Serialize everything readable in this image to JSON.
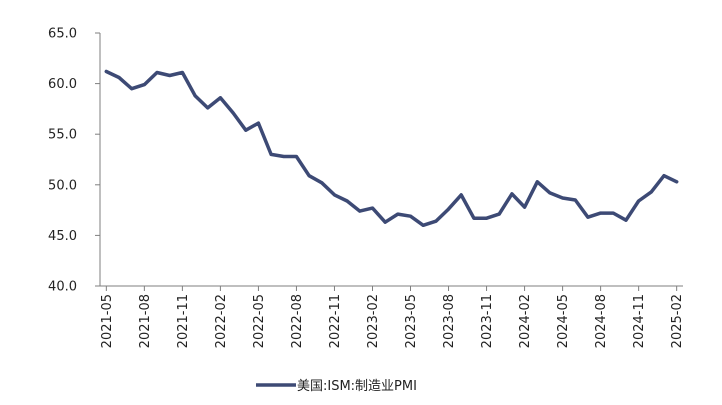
{
  "chart_data": {
    "type": "line",
    "title": "",
    "xlabel": "",
    "ylabel": "",
    "ylim": [
      40,
      65
    ],
    "yticks": [
      "40.0",
      "45.0",
      "50.0",
      "55.0",
      "60.0",
      "65.0"
    ],
    "grid": false,
    "legend_position": "bottom",
    "categories": [
      "2021-05",
      "2021-06",
      "2021-07",
      "2021-08",
      "2021-09",
      "2021-10",
      "2021-11",
      "2021-12",
      "2022-01",
      "2022-02",
      "2022-03",
      "2022-04",
      "2022-05",
      "2022-06",
      "2022-07",
      "2022-08",
      "2022-09",
      "2022-10",
      "2022-11",
      "2022-12",
      "2023-01",
      "2023-02",
      "2023-03",
      "2023-04",
      "2023-05",
      "2023-06",
      "2023-07",
      "2023-08",
      "2023-09",
      "2023-10",
      "2023-11",
      "2023-12",
      "2024-01",
      "2024-02",
      "2024-03",
      "2024-04",
      "2024-05",
      "2024-06",
      "2024-07",
      "2024-08",
      "2024-09",
      "2024-10",
      "2024-11",
      "2024-12",
      "2025-01",
      "2025-02"
    ],
    "xtick_labels": [
      "2021-05",
      "2021-08",
      "2021-11",
      "2022-02",
      "2022-05",
      "2022-08",
      "2022-11",
      "2023-02",
      "2023-05",
      "2023-08",
      "2023-11",
      "2024-02",
      "2024-05",
      "2024-08",
      "2024-11",
      "2025-02"
    ],
    "series": [
      {
        "name": "美国:ISM:制造业PMI",
        "color": "#3d4a75",
        "values": [
          61.2,
          60.6,
          59.5,
          59.9,
          61.1,
          60.8,
          61.1,
          58.8,
          57.6,
          58.6,
          57.1,
          55.4,
          56.1,
          53.0,
          52.8,
          52.8,
          50.9,
          50.2,
          49.0,
          48.4,
          47.4,
          47.7,
          46.3,
          47.1,
          46.9,
          46.0,
          46.4,
          47.6,
          49.0,
          46.7,
          46.7,
          47.1,
          49.1,
          47.8,
          50.3,
          49.2,
          48.7,
          48.5,
          46.8,
          47.2,
          47.2,
          46.5,
          48.4,
          49.3,
          50.9,
          50.3
        ]
      }
    ]
  }
}
